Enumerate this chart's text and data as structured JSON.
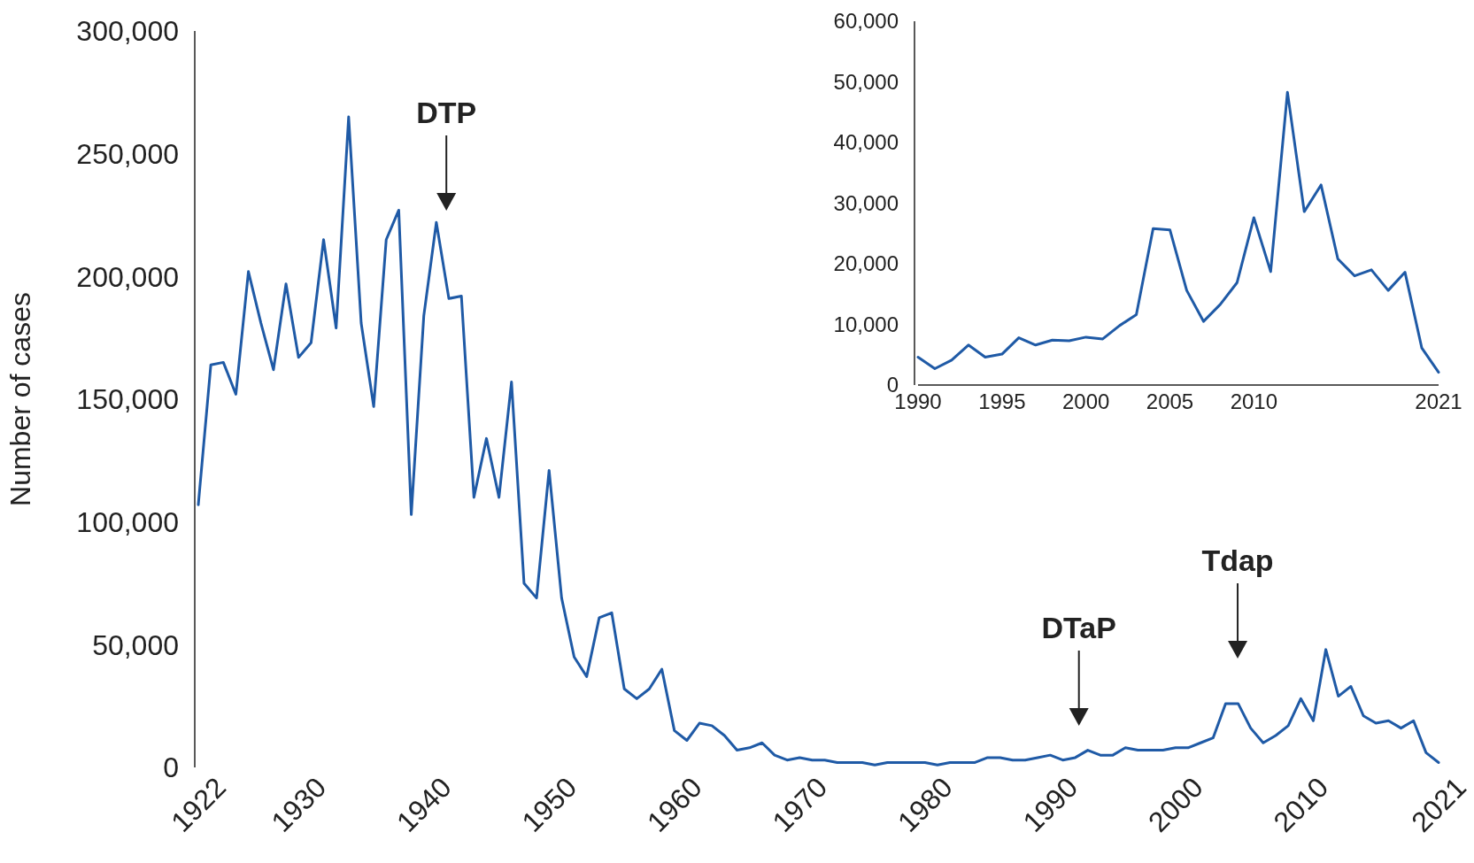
{
  "chart_data": [
    {
      "type": "line",
      "ylabel": "Number of cases",
      "color": "#1f5aa6",
      "x": [
        1922,
        1923,
        1924,
        1925,
        1926,
        1927,
        1928,
        1929,
        1930,
        1931,
        1932,
        1933,
        1934,
        1935,
        1936,
        1937,
        1938,
        1939,
        1940,
        1941,
        1942,
        1943,
        1944,
        1945,
        1946,
        1947,
        1948,
        1949,
        1950,
        1951,
        1952,
        1953,
        1954,
        1955,
        1956,
        1957,
        1958,
        1959,
        1960,
        1961,
        1962,
        1963,
        1964,
        1965,
        1966,
        1967,
        1968,
        1969,
        1970,
        1971,
        1972,
        1973,
        1974,
        1975,
        1976,
        1977,
        1978,
        1979,
        1980,
        1981,
        1982,
        1983,
        1984,
        1985,
        1986,
        1987,
        1988,
        1989,
        1990,
        1991,
        1992,
        1993,
        1994,
        1995,
        1996,
        1997,
        1998,
        1999,
        2000,
        2001,
        2002,
        2003,
        2004,
        2005,
        2006,
        2007,
        2008,
        2009,
        2010,
        2011,
        2012,
        2013,
        2014,
        2015,
        2016,
        2017,
        2018,
        2019,
        2020,
        2021
      ],
      "values": [
        107000,
        164000,
        165000,
        152000,
        202000,
        181000,
        162000,
        197000,
        167000,
        173000,
        215000,
        179000,
        265000,
        181000,
        147000,
        215000,
        227000,
        103000,
        184000,
        222000,
        191000,
        192000,
        110000,
        134000,
        110000,
        157000,
        75000,
        69000,
        121000,
        69000,
        45000,
        37000,
        61000,
        63000,
        32000,
        28000,
        32000,
        40000,
        15000,
        11000,
        18000,
        17000,
        13000,
        7000,
        8000,
        10000,
        5000,
        3000,
        4000,
        3000,
        3000,
        2000,
        2000,
        2000,
        1000,
        2000,
        2000,
        2000,
        2000,
        1000,
        2000,
        2000,
        2000,
        4000,
        4000,
        3000,
        3000,
        4000,
        5000,
        3000,
        4000,
        7000,
        5000,
        5000,
        8000,
        7000,
        7000,
        7000,
        8000,
        8000,
        10000,
        12000,
        26000,
        26000,
        16000,
        10000,
        13000,
        17000,
        28000,
        19000,
        48000,
        29000,
        33000,
        21000,
        18000,
        19000,
        16000,
        19000,
        6000,
        2000
      ],
      "xlim": [
        1922,
        2021
      ],
      "xticks": [
        1922,
        1930,
        1940,
        1950,
        1960,
        1970,
        1980,
        1990,
        2000,
        2010,
        2021
      ],
      "ylim": [
        0,
        300000
      ],
      "yticks": [
        {
          "value": 0,
          "label": "0"
        },
        {
          "value": 50000,
          "label": "50,000"
        },
        {
          "value": 100000,
          "label": "100,000"
        },
        {
          "value": 150000,
          "label": "150,000"
        },
        {
          "value": 200000,
          "label": "200,000"
        },
        {
          "value": 250000,
          "label": "250,000"
        },
        {
          "value": 300000,
          "label": "300,000"
        }
      ],
      "annotations": [
        "DTP",
        "DTaP",
        "Tdap"
      ]
    },
    {
      "type": "line",
      "color": "#1f5aa6",
      "x": [
        1990,
        1991,
        1992,
        1993,
        1994,
        1995,
        1996,
        1997,
        1998,
        1999,
        2000,
        2001,
        2002,
        2003,
        2004,
        2005,
        2006,
        2007,
        2008,
        2009,
        2010,
        2011,
        2012,
        2013,
        2014,
        2015,
        2016,
        2017,
        2018,
        2019,
        2020,
        2021
      ],
      "values": [
        4600,
        2700,
        4100,
        6600,
        4600,
        5100,
        7800,
        6600,
        7400,
        7300,
        7900,
        7600,
        9800,
        11600,
        25800,
        25600,
        15600,
        10500,
        13300,
        16900,
        27600,
        18700,
        48300,
        28600,
        33000,
        20800,
        18000,
        19000,
        15600,
        18600,
        6100,
        2100
      ],
      "xlim": [
        1990,
        2021
      ],
      "xticks": [
        1990,
        1995,
        2000,
        2005,
        2010,
        2021
      ],
      "ylim": [
        0,
        60000
      ],
      "yticks": [
        {
          "value": 0,
          "label": "0"
        },
        {
          "value": 10000,
          "label": "10,000"
        },
        {
          "value": 20000,
          "label": "20,000"
        },
        {
          "value": 30000,
          "label": "30,000"
        },
        {
          "value": 40000,
          "label": "40,000"
        },
        {
          "value": 50000,
          "label": "50,000"
        },
        {
          "value": 60000,
          "label": "60,000"
        }
      ]
    }
  ]
}
